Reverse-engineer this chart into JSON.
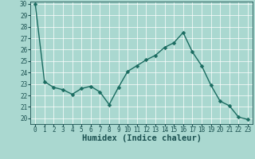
{
  "x": [
    0,
    1,
    2,
    3,
    4,
    5,
    6,
    7,
    8,
    9,
    10,
    11,
    12,
    13,
    14,
    15,
    16,
    17,
    18,
    19,
    20,
    21,
    22,
    23
  ],
  "y": [
    30.0,
    23.2,
    22.7,
    22.5,
    22.1,
    22.6,
    22.8,
    22.3,
    21.2,
    22.7,
    24.1,
    24.6,
    25.1,
    25.5,
    26.2,
    26.6,
    27.5,
    25.8,
    24.6,
    22.9,
    21.5,
    21.1,
    20.1,
    19.9
  ],
  "line_color": "#1a6b60",
  "marker_color": "#1a6b60",
  "bg_color": "#aad8d0",
  "grid_color": "#ffffff",
  "axis_label_color": "#1a5050",
  "tick_color": "#1a5050",
  "xlabel": "Humidex (Indice chaleur)",
  "ylim": [
    20,
    30
  ],
  "xlim": [
    -0.5,
    23.5
  ],
  "yticks": [
    20,
    21,
    22,
    23,
    24,
    25,
    26,
    27,
    28,
    29,
    30
  ],
  "xticks": [
    0,
    1,
    2,
    3,
    4,
    5,
    6,
    7,
    8,
    9,
    10,
    11,
    12,
    13,
    14,
    15,
    16,
    17,
    18,
    19,
    20,
    21,
    22,
    23
  ],
  "fontsize_axis": 5.5,
  "fontsize_label": 7.5,
  "line_width": 1.0,
  "marker_size": 2.5
}
